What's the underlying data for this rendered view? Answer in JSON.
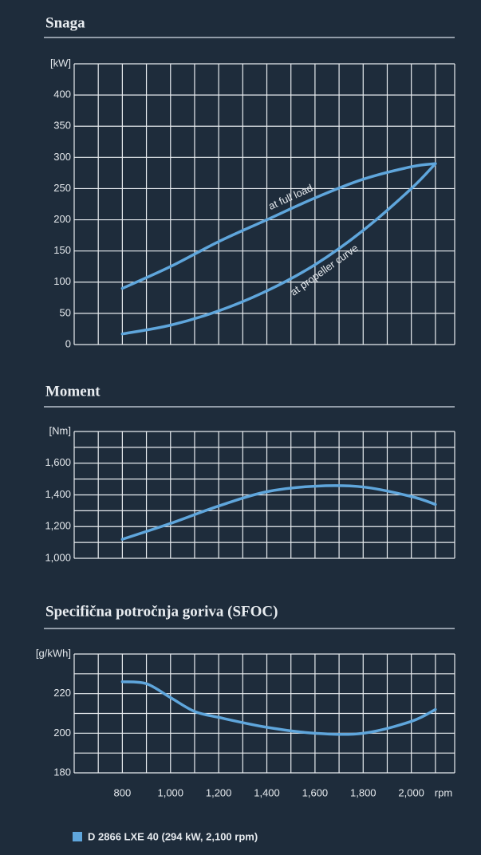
{
  "chart_data": [
    {
      "type": "line",
      "title": "Snaga",
      "x": [
        800,
        1000,
        1200,
        1400,
        1600,
        1800,
        2000,
        2100
      ],
      "series": [
        {
          "name": "at full load",
          "color": "#5fa6dc",
          "values": [
            90,
            125,
            165,
            200,
            235,
            265,
            285,
            290
          ]
        },
        {
          "name": "at propeller curve",
          "color": "#5fa6dc",
          "values": [
            17,
            31,
            54,
            86,
            128,
            183,
            250,
            290
          ]
        }
      ],
      "xlim": [
        600,
        2180
      ],
      "xgrid": [
        600,
        700,
        800,
        900,
        1000,
        1100,
        1200,
        1300,
        1400,
        1500,
        1600,
        1700,
        1800,
        1900,
        2000,
        2100
      ],
      "ylim": [
        0,
        450
      ],
      "yticks": [
        0,
        50,
        100,
        150,
        200,
        250,
        300,
        350,
        400,
        {
          "value": 450,
          "label": "[kW]"
        }
      ],
      "grid": true
    },
    {
      "type": "line",
      "title": "Moment",
      "x": [
        800,
        1000,
        1200,
        1400,
        1600,
        1800,
        2000,
        2100
      ],
      "series": [
        {
          "color": "#5fa6dc",
          "values": [
            1120,
            1220,
            1330,
            1420,
            1455,
            1450,
            1390,
            1340
          ]
        }
      ],
      "xlim": [
        600,
        2180
      ],
      "xgrid": [
        600,
        700,
        800,
        900,
        1000,
        1100,
        1200,
        1300,
        1400,
        1500,
        1600,
        1700,
        1800,
        1900,
        2000,
        2100
      ],
      "ylim": [
        1000,
        1800
      ],
      "yticks": [
        {
          "value": 1000,
          "label": "1,000"
        },
        {
          "value": 1200,
          "label": "1,200"
        },
        {
          "value": 1400,
          "label": "1,400"
        },
        {
          "value": 1600,
          "label": "1,600"
        },
        {
          "value": 1800,
          "label": "[Nm]"
        }
      ],
      "ygrid": [
        1100,
        1300,
        1500,
        1700
      ],
      "grid": true
    },
    {
      "type": "line",
      "title": "Specifična potročnja goriva (SFOC)",
      "x": [
        800,
        900,
        1000,
        1100,
        1200,
        1400,
        1600,
        1800,
        2000,
        2100
      ],
      "series": [
        {
          "color": "#5fa6dc",
          "values": [
            226,
            225,
            218,
            211,
            208,
            203,
            200,
            200,
            206,
            212
          ]
        }
      ],
      "xlim": [
        600,
        2180
      ],
      "xgrid": [
        600,
        700,
        800,
        900,
        1000,
        1100,
        1200,
        1300,
        1400,
        1500,
        1600,
        1700,
        1800,
        1900,
        2000,
        2100
      ],
      "xticks": [
        800,
        {
          "value": 1000,
          "label": "1,000"
        },
        {
          "value": 1200,
          "label": "1,200"
        },
        {
          "value": 1400,
          "label": "1,400"
        },
        {
          "value": 1600,
          "label": "1,600"
        },
        {
          "value": 1800,
          "label": "1,800"
        },
        {
          "value": 2000,
          "label": "2,000"
        }
      ],
      "xlabel": "rpm",
      "ylim": [
        180,
        240
      ],
      "yticks": [
        180,
        200,
        220,
        {
          "value": 240,
          "label": "[g/kWh]"
        }
      ],
      "ygrid": [
        190,
        210,
        230
      ],
      "grid": true
    }
  ],
  "legend": {
    "label": "D 2866 LXE 40 (294 kW, 2,100 rpm)",
    "color": "#5fa6dc"
  }
}
